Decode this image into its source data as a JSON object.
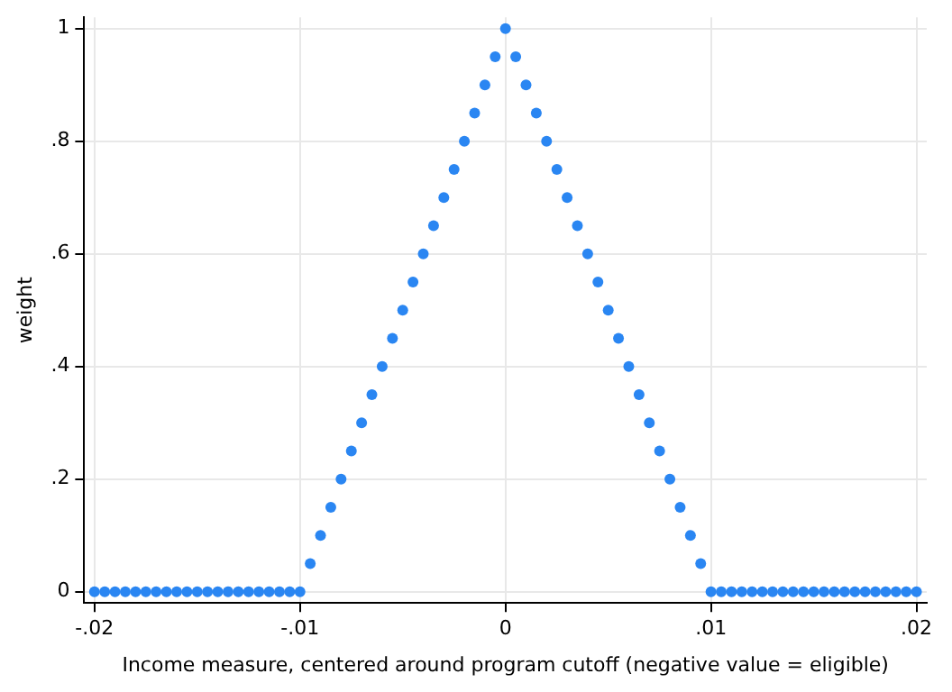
{
  "chart_data": {
    "type": "scatter",
    "xlabel": "Income measure, centered around program cutoff (negative value = eligible)",
    "ylabel": "weight",
    "x": [
      -0.02,
      -0.0195,
      -0.019,
      -0.0185,
      -0.018,
      -0.0175,
      -0.017,
      -0.0165,
      -0.016,
      -0.0155,
      -0.015,
      -0.0145,
      -0.014,
      -0.0135,
      -0.013,
      -0.0125,
      -0.012,
      -0.0115,
      -0.011,
      -0.0105,
      -0.01,
      -0.0095,
      -0.009,
      -0.0085,
      -0.008,
      -0.0075,
      -0.007,
      -0.0065,
      -0.006,
      -0.0055,
      -0.005,
      -0.0045,
      -0.004,
      -0.0035,
      -0.003,
      -0.0025,
      -0.002,
      -0.0015,
      -0.001,
      -0.0005,
      0,
      0.0005,
      0.001,
      0.0015,
      0.002,
      0.0025,
      0.003,
      0.0035,
      0.004,
      0.0045,
      0.005,
      0.0055,
      0.006,
      0.0065,
      0.007,
      0.0075,
      0.008,
      0.0085,
      0.009,
      0.0095,
      0.01,
      0.0105,
      0.011,
      0.0115,
      0.012,
      0.0125,
      0.013,
      0.0135,
      0.014,
      0.0145,
      0.015,
      0.0155,
      0.016,
      0.0165,
      0.017,
      0.0175,
      0.018,
      0.0185,
      0.019,
      0.0195,
      0.02
    ],
    "series": [
      {
        "color": "#2a86f2",
        "values": [
          0,
          0,
          0,
          0,
          0,
          0,
          0,
          0,
          0,
          0,
          0,
          0,
          0,
          0,
          0,
          0,
          0,
          0,
          0,
          0,
          0,
          0.05,
          0.1,
          0.15,
          0.2,
          0.25,
          0.3,
          0.35,
          0.4,
          0.45,
          0.5,
          0.55,
          0.6,
          0.65,
          0.7,
          0.75,
          0.8,
          0.85,
          0.9,
          0.95,
          1,
          0.95,
          0.9,
          0.85,
          0.8,
          0.75,
          0.7,
          0.65,
          0.6,
          0.55,
          0.5,
          0.45,
          0.4,
          0.35,
          0.3,
          0.25,
          0.2,
          0.15,
          0.1,
          0.05,
          0,
          0,
          0,
          0,
          0,
          0,
          0,
          0,
          0,
          0,
          0,
          0,
          0,
          0,
          0,
          0,
          0,
          0,
          0,
          0,
          0
        ]
      }
    ],
    "xlim": [
      -0.0205,
      0.0205
    ],
    "ylim": [
      -0.02,
      1.02
    ],
    "xticks": [
      {
        "value": -0.02,
        "label": "-.02"
      },
      {
        "value": -0.01,
        "label": "-.01"
      },
      0,
      {
        "value": 0.01,
        "label": ".01"
      },
      {
        "value": 0.02,
        "label": ".02"
      }
    ],
    "yticks": [
      0,
      {
        "value": 0.2,
        "label": ".2"
      },
      {
        "value": 0.4,
        "label": ".4"
      },
      {
        "value": 0.6,
        "label": ".6"
      },
      {
        "value": 0.8,
        "label": ".8"
      },
      1
    ],
    "grid": true,
    "legend": false,
    "marker": "circle"
  }
}
